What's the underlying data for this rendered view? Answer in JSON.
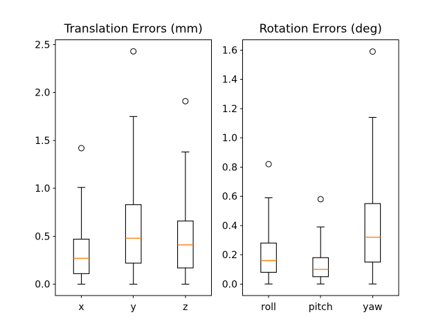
{
  "figure": {
    "background": "#ffffff"
  },
  "colors": {
    "line": "#000000",
    "median": "#ff7f0e",
    "text": "#000000",
    "box_fill": "none"
  },
  "chart_data": [
    {
      "type": "boxplot",
      "title": "Translation Errors (mm)",
      "xlabel": "",
      "ylabel": "",
      "categories": [
        "x",
        "y",
        "z"
      ],
      "xlim": [
        0.5,
        3.5
      ],
      "ylim": [
        -0.12,
        2.55
      ],
      "yticks": [
        0.0,
        0.5,
        1.0,
        1.5,
        2.0,
        2.5
      ],
      "ytick_labels": [
        "0.0",
        "0.5",
        "1.0",
        "1.5",
        "2.0",
        "2.5"
      ],
      "grid": false,
      "legend": false,
      "series": [
        {
          "name": "x",
          "whislo": 0.0,
          "q1": 0.11,
          "med": 0.27,
          "q3": 0.47,
          "whishi": 1.01,
          "fliers": [
            1.42
          ]
        },
        {
          "name": "y",
          "whislo": 0.0,
          "q1": 0.22,
          "med": 0.48,
          "q3": 0.83,
          "whishi": 1.75,
          "fliers": [
            2.43
          ]
        },
        {
          "name": "z",
          "whislo": 0.0,
          "q1": 0.17,
          "med": 0.41,
          "q3": 0.66,
          "whishi": 1.38,
          "fliers": [
            1.91
          ]
        }
      ]
    },
    {
      "type": "boxplot",
      "title": "Rotation Errors (deg)",
      "xlabel": "",
      "ylabel": "",
      "categories": [
        "roll",
        "pitch",
        "yaw"
      ],
      "xlim": [
        0.5,
        3.5
      ],
      "ylim": [
        -0.08,
        1.67
      ],
      "yticks": [
        0.0,
        0.2,
        0.4,
        0.6,
        0.8,
        1.0,
        1.2,
        1.4,
        1.6
      ],
      "ytick_labels": [
        "0.0",
        "0.2",
        "0.4",
        "0.6",
        "0.8",
        "1.0",
        "1.2",
        "1.4",
        "1.6"
      ],
      "grid": false,
      "legend": false,
      "series": [
        {
          "name": "roll",
          "whislo": 0.0,
          "q1": 0.08,
          "med": 0.16,
          "q3": 0.28,
          "whishi": 0.59,
          "fliers": [
            0.82
          ]
        },
        {
          "name": "pitch",
          "whislo": 0.0,
          "q1": 0.05,
          "med": 0.1,
          "q3": 0.18,
          "whishi": 0.39,
          "fliers": [
            0.58
          ]
        },
        {
          "name": "yaw",
          "whislo": 0.0,
          "q1": 0.15,
          "med": 0.32,
          "q3": 0.55,
          "whishi": 1.14,
          "fliers": [
            1.59
          ]
        }
      ]
    }
  ]
}
